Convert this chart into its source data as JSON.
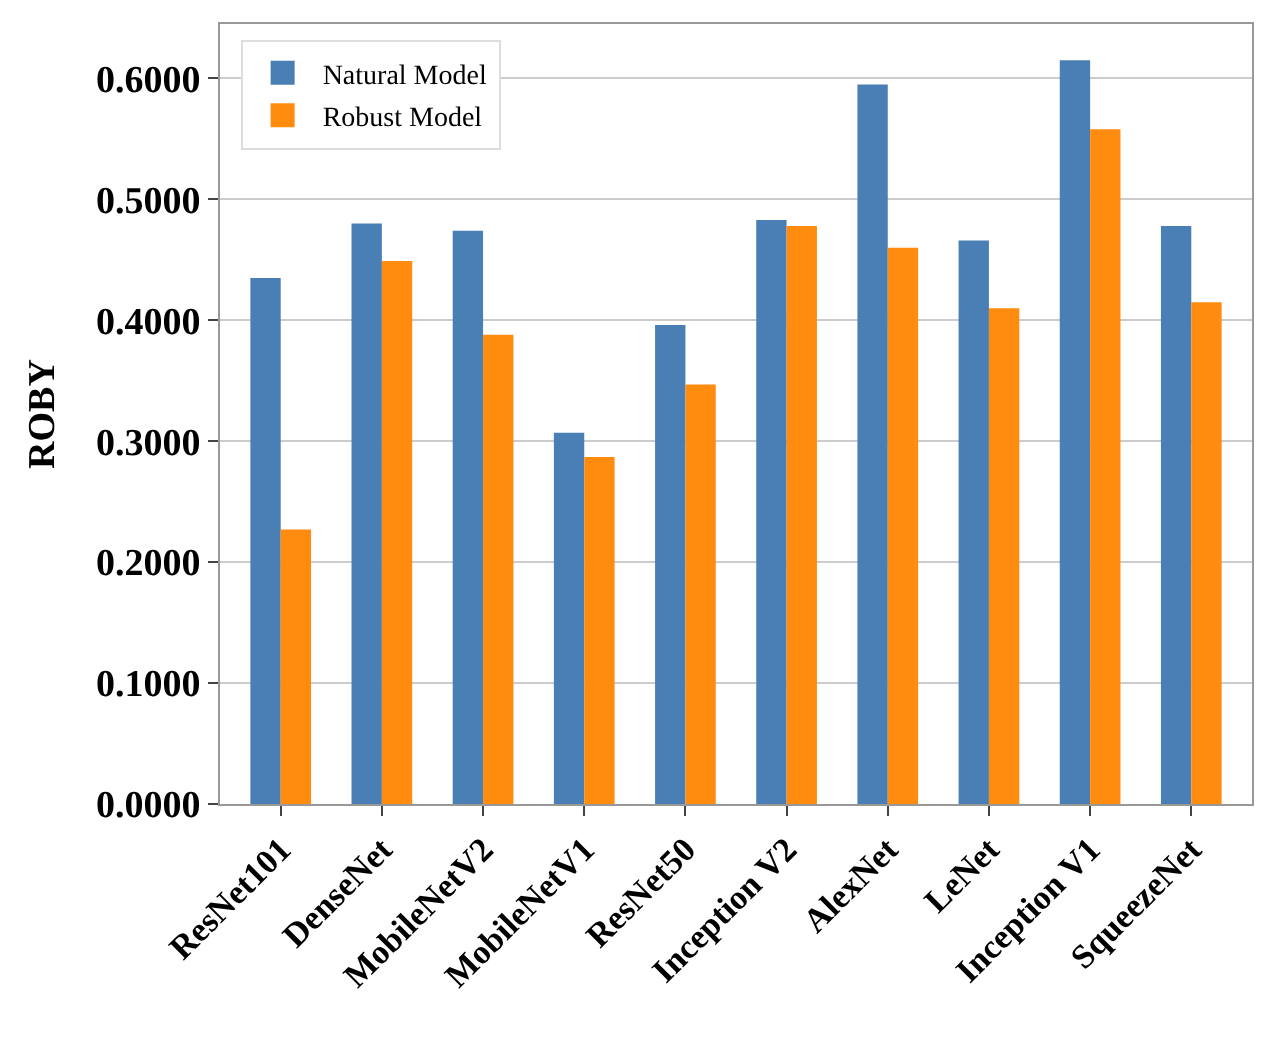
{
  "chart_data": {
    "type": "bar",
    "ylabel": "ROBY",
    "categories": [
      "ResNet101",
      "DenseNet",
      "MobileNetV2",
      "MobileNetV1",
      "ResNet50",
      "Inception V2",
      "AlexNet",
      "LeNet",
      "Inception V1",
      "SqueezeNet"
    ],
    "series": [
      {
        "name": "Natural Model",
        "color": "#4a7fb5",
        "values": [
          0.435,
          0.48,
          0.474,
          0.307,
          0.396,
          0.483,
          0.595,
          0.466,
          0.615,
          0.478
        ]
      },
      {
        "name": "Robust Model",
        "color": "#ff8c0e",
        "values": [
          0.227,
          0.449,
          0.388,
          0.287,
          0.347,
          0.478,
          0.46,
          0.41,
          0.558,
          0.415
        ]
      }
    ],
    "ylim": [
      0,
      0.645
    ],
    "yticks": [
      {
        "value": 0,
        "label": "0.0000"
      },
      {
        "value": 0.1,
        "label": "0.1000"
      },
      {
        "value": 0.2,
        "label": "0.2000"
      },
      {
        "value": 0.3,
        "label": "0.3000"
      },
      {
        "value": 0.4,
        "label": "0.4000"
      },
      {
        "value": 0.5,
        "label": "0.5000"
      },
      {
        "value": 0.6,
        "label": "0.6000"
      }
    ],
    "grid": "y",
    "legend": "top left"
  }
}
